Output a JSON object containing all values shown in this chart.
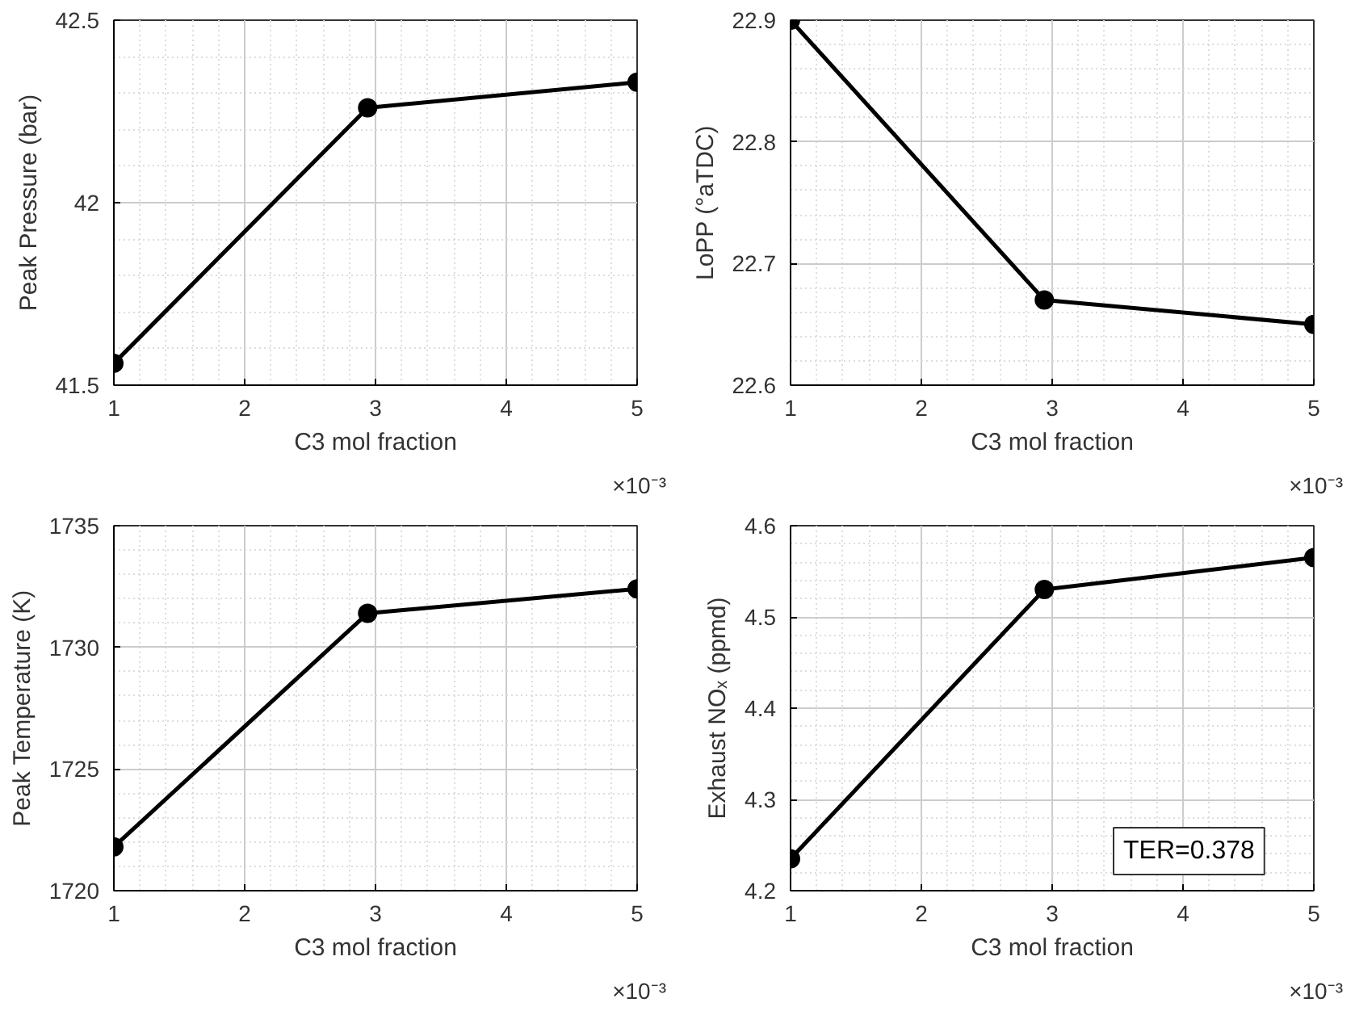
{
  "chart_data": [
    {
      "type": "line",
      "xlabel": "C3 mol fraction",
      "ylabel": "Peak Pressure (bar)",
      "x": [
        1,
        2.94,
        5
      ],
      "series": [
        {
          "color": "#000000",
          "values": [
            41.56,
            42.26,
            42.33
          ]
        }
      ],
      "xlim": [
        1,
        5
      ],
      "xticks": [
        1,
        2,
        3,
        4,
        5
      ],
      "ylim": [
        41.5,
        42.5
      ],
      "yticks": [
        41.5,
        42,
        42.5
      ],
      "grid": true,
      "marker": "circle",
      "line_style": "solid",
      "annotations": [
        "×10⁻³"
      ]
    },
    {
      "type": "line",
      "xlabel": "C3 mol fraction",
      "ylabel": "LoPP (°aTDC)",
      "x": [
        1,
        2.94,
        5
      ],
      "series": [
        {
          "color": "#000000",
          "values": [
            22.9,
            22.67,
            22.65
          ]
        }
      ],
      "xlim": [
        1,
        5
      ],
      "xticks": [
        1,
        2,
        3,
        4,
        5
      ],
      "ylim": [
        22.6,
        22.9
      ],
      "yticks": [
        22.6,
        22.7,
        22.8,
        22.9
      ],
      "grid": true,
      "marker": "circle",
      "line_style": "solid",
      "annotations": [
        "×10⁻³"
      ]
    },
    {
      "type": "line",
      "xlabel": "C3 mol fraction",
      "ylabel": "Peak Temperature (K)",
      "x": [
        1,
        2.94,
        5
      ],
      "series": [
        {
          "color": "#000000",
          "values": [
            1721.8,
            1731.4,
            1732.4
          ]
        }
      ],
      "xlim": [
        1,
        5
      ],
      "xticks": [
        1,
        2,
        3,
        4,
        5
      ],
      "ylim": [
        1720,
        1735
      ],
      "yticks": [
        1720,
        1725,
        1730,
        1735
      ],
      "grid": true,
      "marker": "circle",
      "line_style": "solid",
      "annotations": [
        "×10⁻³"
      ]
    },
    {
      "type": "line",
      "xlabel": "C3 mol fraction",
      "ylabel": "Exhaust NOₓ (ppmd)",
      "x": [
        1,
        2.94,
        5
      ],
      "series": [
        {
          "color": "#000000",
          "values": [
            4.235,
            4.53,
            4.565
          ]
        }
      ],
      "xlim": [
        1,
        5
      ],
      "xticks": [
        1,
        2,
        3,
        4,
        5
      ],
      "ylim": [
        4.2,
        4.6
      ],
      "yticks": [
        4.2,
        4.3,
        4.4,
        4.5,
        4.6
      ],
      "grid": true,
      "marker": "circle",
      "line_style": "solid",
      "annotations": [
        "×10⁻³",
        "TER=0.378"
      ]
    }
  ]
}
